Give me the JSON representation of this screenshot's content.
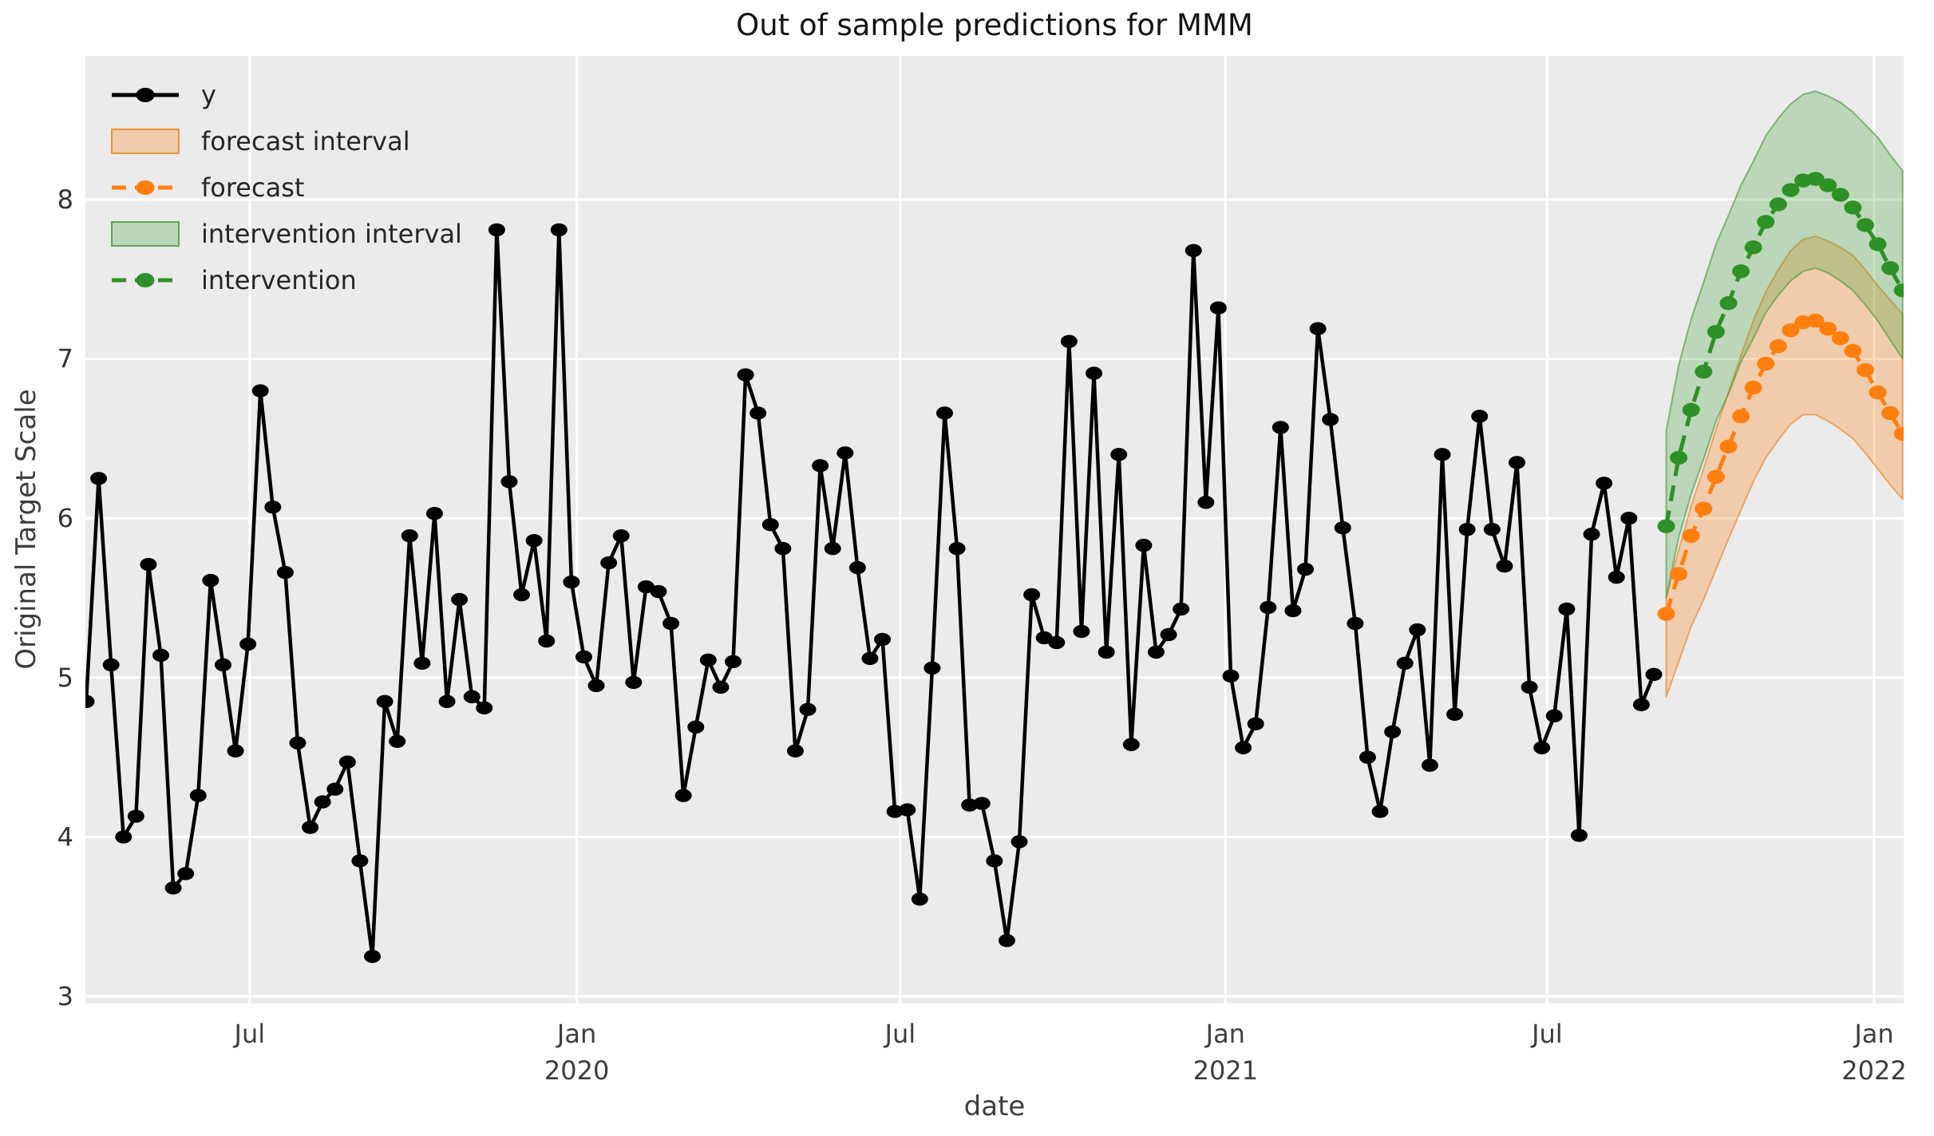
{
  "figure": {
    "title": "Out of sample predictions for MMM",
    "xlabel": "date",
    "ylabel": "Original Target Scale"
  },
  "colors": {
    "figure_bg": "#ffffff",
    "plot_bg": "#ebebeb",
    "grid": "#ffffff",
    "tick_text": "#3d3d3d",
    "y_series": "#000000",
    "forecast": "#ff7f0e",
    "intervention": "#2e9127",
    "forecast_band_fill": "rgba(255,127,14,0.28)",
    "forecast_band_edge": "rgba(232,129,33,0.60)",
    "intervention_band_fill": "rgba(60,160,50,0.27)",
    "intervention_band_edge": "rgba(70,150,55,0.60)"
  },
  "legend": {
    "position": "upper-left",
    "items": [
      {
        "label": "y",
        "type": "marker-line",
        "color": "#000000",
        "dashed": false
      },
      {
        "label": "forecast interval",
        "type": "patch",
        "fill": "rgba(255,127,14,0.28)",
        "edge": "rgba(232,129,33,0.80)"
      },
      {
        "label": "forecast",
        "type": "marker-line",
        "color": "#ff7f0e",
        "dashed": true
      },
      {
        "label": "intervention interval",
        "type": "patch",
        "fill": "rgba(60,160,50,0.27)",
        "edge": "rgba(70,150,55,0.80)"
      },
      {
        "label": "intervention",
        "type": "marker-line",
        "color": "#2e9127",
        "dashed": true
      }
    ]
  },
  "chart_data": {
    "type": "line",
    "title": "Out of sample predictions for MMM",
    "xlabel": "date",
    "ylabel": "Original Target Scale",
    "frequency": "weekly",
    "grid": true,
    "legend_position": "upper-left",
    "ylim": [
      2.96,
      8.9
    ],
    "y_ticks": [
      3,
      4,
      5,
      6,
      7,
      8
    ],
    "x_ticks": [
      {
        "week": 13.14,
        "label": "Jul",
        "year": ""
      },
      {
        "week": 39.43,
        "label": "Jan",
        "year": "2020"
      },
      {
        "week": 65.43,
        "label": "Jul",
        "year": ""
      },
      {
        "week": 91.57,
        "label": "Jan",
        "year": "2021"
      },
      {
        "week": 117.43,
        "label": "Jul",
        "year": ""
      },
      {
        "week": 143.71,
        "label": "Jan",
        "year": "2022"
      }
    ],
    "series": [
      {
        "name": "y",
        "start_date": "2019-03-31",
        "end_date": "2021-08-29",
        "start_week": 0,
        "values": [
          4.85,
          6.25,
          5.08,
          4.0,
          4.13,
          5.71,
          5.14,
          3.68,
          3.77,
          4.26,
          5.61,
          5.08,
          4.54,
          5.21,
          6.8,
          6.07,
          5.66,
          4.59,
          4.06,
          4.22,
          4.3,
          4.47,
          3.85,
          3.25,
          4.85,
          4.6,
          5.89,
          5.09,
          6.03,
          4.85,
          5.49,
          4.88,
          4.81,
          7.81,
          6.23,
          5.52,
          5.86,
          5.23,
          7.81,
          5.6,
          5.13,
          4.95,
          5.72,
          5.89,
          4.97,
          5.57,
          5.54,
          5.34,
          4.26,
          4.69,
          5.11,
          4.94,
          5.1,
          6.9,
          6.66,
          5.96,
          5.81,
          4.54,
          4.8,
          6.33,
          5.81,
          6.41,
          5.69,
          5.12,
          5.24,
          4.16,
          4.17,
          3.61,
          5.06,
          6.66,
          5.81,
          4.2,
          4.21,
          3.85,
          3.35,
          3.97,
          5.52,
          5.25,
          5.22,
          7.11,
          5.29,
          6.91,
          5.16,
          6.4,
          4.58,
          5.83,
          5.16,
          5.27,
          5.43,
          7.68,
          6.1,
          7.32,
          5.01,
          4.56,
          4.71,
          5.44,
          6.57,
          5.42,
          5.68,
          7.19,
          6.62,
          5.94,
          5.34,
          4.5,
          4.16,
          4.66,
          5.09,
          5.3,
          4.45,
          6.4,
          4.77,
          5.93,
          6.64,
          5.93,
          5.7,
          6.35,
          4.94,
          4.56,
          4.76,
          5.43,
          4.01,
          5.9,
          6.22,
          5.63,
          6.0,
          4.83,
          5.02
        ]
      },
      {
        "name": "forecast",
        "start_date": "2021-09-05",
        "end_date": "2022-01-16",
        "start_week": 127,
        "values": [
          5.4,
          5.65,
          5.89,
          6.06,
          6.26,
          6.45,
          6.64,
          6.82,
          6.97,
          7.08,
          7.18,
          7.23,
          7.24,
          7.19,
          7.13,
          7.05,
          6.93,
          6.79,
          6.66,
          6.53
        ]
      },
      {
        "name": "intervention",
        "start_date": "2021-09-05",
        "end_date": "2022-01-16",
        "start_week": 127,
        "values": [
          5.95,
          6.38,
          6.68,
          6.92,
          7.17,
          7.35,
          7.55,
          7.7,
          7.86,
          7.97,
          8.06,
          8.12,
          8.13,
          8.09,
          8.03,
          7.95,
          7.84,
          7.72,
          7.57,
          7.43
        ]
      }
    ],
    "bands": [
      {
        "name": "forecast interval",
        "start_week": 127,
        "lower": [
          4.88,
          5.1,
          5.32,
          5.49,
          5.68,
          5.87,
          6.05,
          6.23,
          6.38,
          6.49,
          6.59,
          6.65,
          6.65,
          6.61,
          6.56,
          6.5,
          6.41,
          6.31,
          6.21,
          6.12
        ],
        "upper": [
          5.5,
          5.8,
          6.08,
          6.31,
          6.56,
          6.79,
          7.02,
          7.24,
          7.42,
          7.56,
          7.68,
          7.75,
          7.77,
          7.74,
          7.7,
          7.65,
          7.56,
          7.46,
          7.37,
          7.28
        ]
      },
      {
        "name": "intervention interval",
        "start_week": 127,
        "lower": [
          5.5,
          5.88,
          6.15,
          6.37,
          6.61,
          6.78,
          6.98,
          7.13,
          7.29,
          7.4,
          7.49,
          7.55,
          7.57,
          7.54,
          7.49,
          7.43,
          7.34,
          7.24,
          7.12,
          7.0
        ],
        "upper": [
          6.55,
          6.96,
          7.25,
          7.48,
          7.72,
          7.9,
          8.09,
          8.24,
          8.4,
          8.51,
          8.6,
          8.66,
          8.68,
          8.65,
          8.61,
          8.55,
          8.47,
          8.39,
          8.28,
          8.18
        ]
      }
    ]
  }
}
